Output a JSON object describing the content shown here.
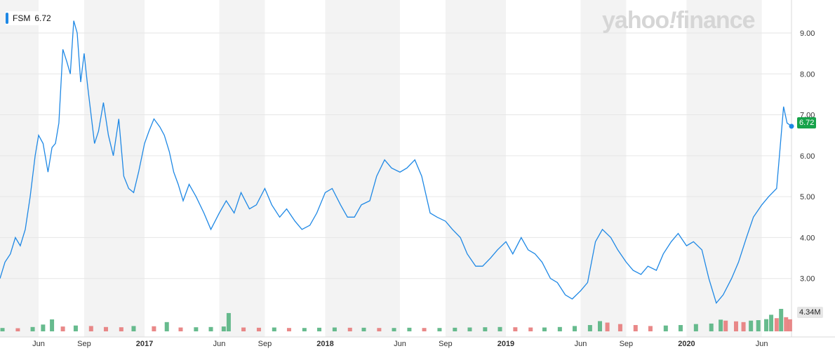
{
  "header": {
    "symbol": "FSM",
    "last_price": "6.72"
  },
  "brand": {
    "part1": "yahoo",
    "slash": "!",
    "part2": "finance"
  },
  "colors": {
    "line": "#1e88e5",
    "volume_up": "#4caf7a",
    "volume_down": "#e57373",
    "price_tag": "#16a34a",
    "band": "#f3f3f3"
  },
  "chart_data": {
    "type": "line",
    "x_range": [
      "2016-03-15",
      "2020-07-31"
    ],
    "ylim": [
      2.0,
      9.6
    ],
    "y_ticks": [
      "9.00",
      "8.00",
      "7.00",
      "6.00",
      "5.00",
      "4.00",
      "3.00"
    ],
    "x_ticks": [
      {
        "label": "Jun",
        "date": "2016-06-01"
      },
      {
        "label": "Sep",
        "date": "2016-09-01"
      },
      {
        "label": "2017",
        "date": "2017-01-01"
      },
      {
        "label": "Jun",
        "date": "2017-06-01"
      },
      {
        "label": "Sep",
        "date": "2017-09-01"
      },
      {
        "label": "2018",
        "date": "2018-01-01"
      },
      {
        "label": "Jun",
        "date": "2018-06-01"
      },
      {
        "label": "Sep",
        "date": "2018-09-01"
      },
      {
        "label": "2019",
        "date": "2019-01-01"
      },
      {
        "label": "Jun",
        "date": "2019-06-01"
      },
      {
        "label": "Sep",
        "date": "2019-09-01"
      },
      {
        "label": "2020",
        "date": "2020-01-01"
      },
      {
        "label": "Jun",
        "date": "2020-06-01"
      }
    ],
    "price_label": "6.72",
    "volume_label": "4.34M",
    "series": [
      {
        "points": [
          [
            "2016-03-15",
            3.0
          ],
          [
            "2016-03-25",
            3.4
          ],
          [
            "2016-04-05",
            3.6
          ],
          [
            "2016-04-15",
            4.0
          ],
          [
            "2016-04-25",
            3.8
          ],
          [
            "2016-05-05",
            4.2
          ],
          [
            "2016-05-15",
            5.0
          ],
          [
            "2016-05-25",
            6.0
          ],
          [
            "2016-06-01",
            6.5
          ],
          [
            "2016-06-10",
            6.3
          ],
          [
            "2016-06-20",
            5.6
          ],
          [
            "2016-06-28",
            6.2
          ],
          [
            "2016-07-05",
            6.3
          ],
          [
            "2016-07-12",
            6.8
          ],
          [
            "2016-07-20",
            8.6
          ],
          [
            "2016-07-28",
            8.3
          ],
          [
            "2016-08-04",
            8.0
          ],
          [
            "2016-08-11",
            9.3
          ],
          [
            "2016-08-18",
            9.0
          ],
          [
            "2016-08-25",
            7.8
          ],
          [
            "2016-09-01",
            8.5
          ],
          [
            "2016-09-08",
            7.7
          ],
          [
            "2016-09-15",
            7.0
          ],
          [
            "2016-09-22",
            6.3
          ],
          [
            "2016-09-30",
            6.6
          ],
          [
            "2016-10-10",
            7.3
          ],
          [
            "2016-10-20",
            6.5
          ],
          [
            "2016-10-30",
            6.0
          ],
          [
            "2016-11-10",
            6.9
          ],
          [
            "2016-11-20",
            5.5
          ],
          [
            "2016-11-30",
            5.2
          ],
          [
            "2016-12-10",
            5.1
          ],
          [
            "2016-12-20",
            5.6
          ],
          [
            "2017-01-01",
            6.3
          ],
          [
            "2017-01-10",
            6.6
          ],
          [
            "2017-01-20",
            6.9
          ],
          [
            "2017-02-01",
            6.7
          ],
          [
            "2017-02-10",
            6.5
          ],
          [
            "2017-02-20",
            6.1
          ],
          [
            "2017-03-01",
            5.6
          ],
          [
            "2017-03-10",
            5.3
          ],
          [
            "2017-03-20",
            4.9
          ],
          [
            "2017-04-01",
            5.3
          ],
          [
            "2017-04-15",
            5.0
          ],
          [
            "2017-05-01",
            4.6
          ],
          [
            "2017-05-15",
            4.2
          ],
          [
            "2017-06-01",
            4.6
          ],
          [
            "2017-06-15",
            4.9
          ],
          [
            "2017-07-01",
            4.6
          ],
          [
            "2017-07-15",
            5.1
          ],
          [
            "2017-08-01",
            4.7
          ],
          [
            "2017-08-15",
            4.8
          ],
          [
            "2017-09-01",
            5.2
          ],
          [
            "2017-09-15",
            4.8
          ],
          [
            "2017-10-01",
            4.5
          ],
          [
            "2017-10-15",
            4.7
          ],
          [
            "2017-11-01",
            4.4
          ],
          [
            "2017-11-15",
            4.2
          ],
          [
            "2017-12-01",
            4.3
          ],
          [
            "2017-12-15",
            4.6
          ],
          [
            "2018-01-01",
            5.1
          ],
          [
            "2018-01-15",
            5.2
          ],
          [
            "2018-02-01",
            4.8
          ],
          [
            "2018-02-15",
            4.5
          ],
          [
            "2018-03-01",
            4.5
          ],
          [
            "2018-03-15",
            4.8
          ],
          [
            "2018-04-01",
            4.9
          ],
          [
            "2018-04-15",
            5.5
          ],
          [
            "2018-05-01",
            5.9
          ],
          [
            "2018-05-15",
            5.7
          ],
          [
            "2018-06-01",
            5.6
          ],
          [
            "2018-06-15",
            5.7
          ],
          [
            "2018-07-01",
            5.9
          ],
          [
            "2018-07-15",
            5.5
          ],
          [
            "2018-08-01",
            4.6
          ],
          [
            "2018-08-15",
            4.5
          ],
          [
            "2018-09-01",
            4.4
          ],
          [
            "2018-09-15",
            4.2
          ],
          [
            "2018-10-01",
            4.0
          ],
          [
            "2018-10-15",
            3.6
          ],
          [
            "2018-11-01",
            3.3
          ],
          [
            "2018-11-15",
            3.3
          ],
          [
            "2018-12-01",
            3.5
          ],
          [
            "2018-12-15",
            3.7
          ],
          [
            "2019-01-01",
            3.9
          ],
          [
            "2019-01-15",
            3.6
          ],
          [
            "2019-02-01",
            4.0
          ],
          [
            "2019-02-15",
            3.7
          ],
          [
            "2019-03-01",
            3.6
          ],
          [
            "2019-03-15",
            3.4
          ],
          [
            "2019-04-01",
            3.0
          ],
          [
            "2019-04-15",
            2.9
          ],
          [
            "2019-05-01",
            2.6
          ],
          [
            "2019-05-15",
            2.5
          ],
          [
            "2019-06-01",
            2.7
          ],
          [
            "2019-06-15",
            2.9
          ],
          [
            "2019-07-01",
            3.9
          ],
          [
            "2019-07-15",
            4.2
          ],
          [
            "2019-08-01",
            4.0
          ],
          [
            "2019-08-15",
            3.7
          ],
          [
            "2019-09-01",
            3.4
          ],
          [
            "2019-09-15",
            3.2
          ],
          [
            "2019-10-01",
            3.1
          ],
          [
            "2019-10-15",
            3.3
          ],
          [
            "2019-11-01",
            3.2
          ],
          [
            "2019-11-15",
            3.6
          ],
          [
            "2019-12-01",
            3.9
          ],
          [
            "2019-12-15",
            4.1
          ],
          [
            "2020-01-01",
            3.8
          ],
          [
            "2020-01-15",
            3.9
          ],
          [
            "2020-02-01",
            3.7
          ],
          [
            "2020-02-15",
            3.0
          ],
          [
            "2020-03-01",
            2.4
          ],
          [
            "2020-03-15",
            2.6
          ],
          [
            "2020-04-01",
            3.0
          ],
          [
            "2020-04-15",
            3.4
          ],
          [
            "2020-05-01",
            4.0
          ],
          [
            "2020-05-15",
            4.5
          ],
          [
            "2020-06-01",
            4.8
          ],
          [
            "2020-06-15",
            5.0
          ],
          [
            "2020-07-01",
            5.2
          ],
          [
            "2020-07-08",
            6.2
          ],
          [
            "2020-07-15",
            7.2
          ],
          [
            "2020-07-22",
            6.8
          ],
          [
            "2020-07-31",
            6.72
          ]
        ]
      }
    ],
    "volume": [
      [
        "2016-03-20",
        0.8
      ],
      [
        "2016-04-20",
        0.7
      ],
      [
        "2016-05-20",
        1.2
      ],
      [
        "2016-06-10",
        2.2
      ],
      [
        "2016-06-28",
        4.3
      ],
      [
        "2016-07-20",
        1.4
      ],
      [
        "2016-08-15",
        1.8
      ],
      [
        "2016-09-15",
        1.6
      ],
      [
        "2016-10-15",
        1.2
      ],
      [
        "2016-11-15",
        1.1
      ],
      [
        "2016-12-10",
        1.6
      ],
      [
        "2017-01-20",
        1.5
      ],
      [
        "2017-02-15",
        3.2
      ],
      [
        "2017-03-15",
        1.0
      ],
      [
        "2017-04-15",
        1.1
      ],
      [
        "2017-05-15",
        1.2
      ],
      [
        "2017-06-10",
        1.4
      ],
      [
        "2017-06-20",
        6.9
      ],
      [
        "2017-07-20",
        1.0
      ],
      [
        "2017-08-20",
        0.9
      ],
      [
        "2017-09-20",
        1.0
      ],
      [
        "2017-10-20",
        0.8
      ],
      [
        "2017-11-20",
        0.8
      ],
      [
        "2017-12-20",
        0.9
      ],
      [
        "2018-01-20",
        1.0
      ],
      [
        "2018-02-20",
        0.9
      ],
      [
        "2018-03-20",
        0.9
      ],
      [
        "2018-04-20",
        0.8
      ],
      [
        "2018-05-20",
        0.8
      ],
      [
        "2018-06-20",
        0.9
      ],
      [
        "2018-07-20",
        0.8
      ],
      [
        "2018-08-20",
        0.8
      ],
      [
        "2018-09-20",
        0.9
      ],
      [
        "2018-10-20",
        1.0
      ],
      [
        "2018-11-20",
        1.1
      ],
      [
        "2018-12-20",
        1.2
      ],
      [
        "2019-01-20",
        1.1
      ],
      [
        "2019-02-20",
        1.0
      ],
      [
        "2019-03-20",
        1.0
      ],
      [
        "2019-04-20",
        1.2
      ],
      [
        "2019-05-20",
        1.6
      ],
      [
        "2019-06-20",
        2.0
      ],
      [
        "2019-07-10",
        3.6
      ],
      [
        "2019-07-25",
        3.0
      ],
      [
        "2019-08-20",
        2.4
      ],
      [
        "2019-09-20",
        2.0
      ],
      [
        "2019-10-20",
        1.6
      ],
      [
        "2019-11-20",
        1.8
      ],
      [
        "2019-12-20",
        2.0
      ],
      [
        "2020-01-20",
        2.4
      ],
      [
        "2020-02-20",
        2.6
      ],
      [
        "2020-03-10",
        4.2
      ],
      [
        "2020-03-20",
        3.8
      ],
      [
        "2020-04-10",
        3.5
      ],
      [
        "2020-04-25",
        3.2
      ],
      [
        "2020-05-10",
        3.8
      ],
      [
        "2020-05-25",
        4.0
      ],
      [
        "2020-06-10",
        4.4
      ],
      [
        "2020-06-20",
        6.2
      ],
      [
        "2020-07-01",
        4.8
      ],
      [
        "2020-07-10",
        8.6
      ],
      [
        "2020-07-20",
        5.2
      ],
      [
        "2020-07-28",
        4.34
      ]
    ]
  }
}
